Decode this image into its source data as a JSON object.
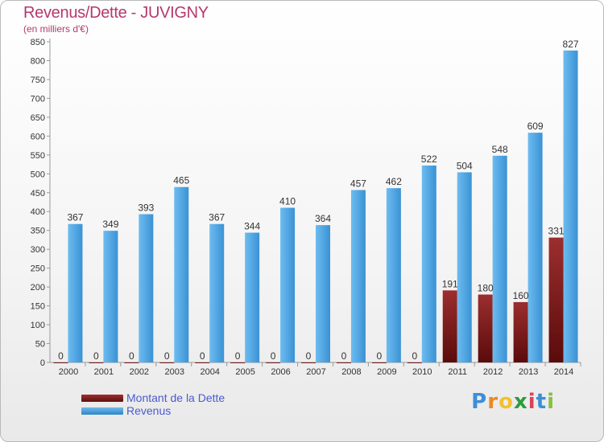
{
  "header": {
    "title": "Revenus/Dette - JUVIGNY",
    "subtitle": "(en milliers d'€)"
  },
  "legend": {
    "debt_label": "Montant de la Dette",
    "revenue_label": "Revenus"
  },
  "logo": {
    "text": "Proxiti"
  },
  "colors": {
    "debt": "#7a1a1a",
    "revenue": "#4aa3e0",
    "title": "#b4386c"
  },
  "chart_data": {
    "type": "bar",
    "title": "Revenus/Dette - JUVIGNY",
    "subtitle": "(en milliers d'€)",
    "categories": [
      "2000",
      "2001",
      "2002",
      "2003",
      "2004",
      "2005",
      "2006",
      "2007",
      "2008",
      "2009",
      "2010",
      "2011",
      "2012",
      "2013",
      "2014"
    ],
    "series": [
      {
        "name": "Montant de la Dette",
        "values": [
          0,
          0,
          0,
          0,
          0,
          0,
          0,
          0,
          0,
          0,
          0,
          191,
          180,
          160,
          331
        ]
      },
      {
        "name": "Revenus",
        "values": [
          367,
          349,
          393,
          465,
          367,
          344,
          410,
          364,
          457,
          462,
          522,
          504,
          548,
          609,
          827
        ]
      }
    ],
    "ylim": [
      0,
      850
    ],
    "yticks": [
      0,
      50,
      100,
      150,
      200,
      250,
      300,
      350,
      400,
      450,
      500,
      550,
      600,
      650,
      700,
      750,
      800,
      850
    ],
    "grid": false,
    "legend_position": "bottom-left"
  }
}
